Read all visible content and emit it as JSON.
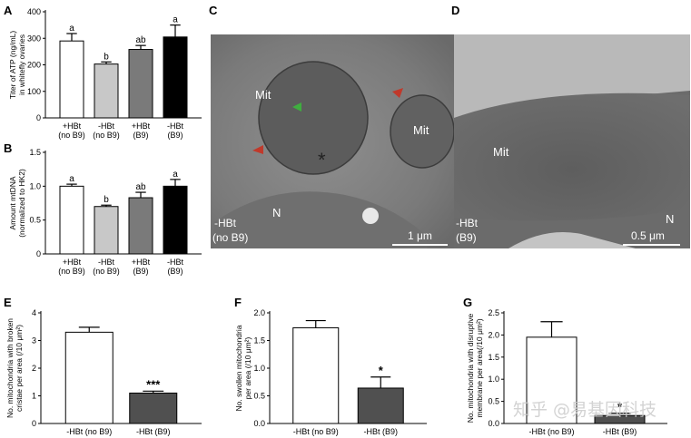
{
  "panels": {
    "A": "A",
    "B": "B",
    "C": "C",
    "D": "D",
    "E": "E",
    "F": "F",
    "G": "G"
  },
  "em": {
    "C": {
      "labels": [
        "Mit",
        "Mit",
        "N"
      ],
      "condition_line1": "-HBt",
      "condition_line2": "(no B9)",
      "scale": "1 μm"
    },
    "D": {
      "labels": [
        "Mit",
        "N"
      ],
      "condition_line1": "-HBt",
      "condition_line2": "(B9)",
      "scale": "0.5 μm"
    }
  },
  "watermark": "知乎 @易基因科技",
  "colors": {
    "white": "#ffffff",
    "light_gray": "#c8c8c8",
    "mid_gray": "#7a7a7a",
    "dark_gray": "#505050",
    "black": "#000000"
  },
  "chart_data": [
    {
      "id": "A",
      "type": "bar",
      "categories": [
        "+HBt\n(no B9)",
        "-HBt\n(no B9)",
        "+HBt\n(B9)",
        "-HBt\n(B9)"
      ],
      "values": [
        290,
        203,
        258,
        305
      ],
      "errors": [
        28,
        8,
        15,
        45
      ],
      "sig": [
        "a",
        "b",
        "ab",
        "a"
      ],
      "ylabel": [
        "Titer of ATP (ng/mL)",
        "in whitefly ovaries"
      ],
      "ylim": [
        0,
        400
      ],
      "yticks": [
        0,
        100,
        200,
        300,
        400
      ],
      "bar_colors": [
        "#ffffff",
        "#c8c8c8",
        "#7a7a7a",
        "#000000"
      ]
    },
    {
      "id": "B",
      "type": "bar",
      "categories": [
        "+HBt\n(no B9)",
        "-HBt\n(no B9)",
        "+HBt\n(B9)",
        "-HBt\n(B9)"
      ],
      "values": [
        1.0,
        0.7,
        0.83,
        1.0
      ],
      "errors": [
        0.03,
        0.02,
        0.08,
        0.1
      ],
      "sig": [
        "a",
        "b",
        "ab",
        "a"
      ],
      "ylabel": [
        "Amount mtDNA",
        "(normalized to HK2)"
      ],
      "ylim": [
        0,
        1.5
      ],
      "yticks": [
        "0",
        "0.5",
        "1.0",
        "1.5"
      ],
      "bar_colors": [
        "#ffffff",
        "#c8c8c8",
        "#7a7a7a",
        "#000000"
      ]
    },
    {
      "id": "E",
      "type": "bar",
      "categories": [
        "-HBt (no B9)",
        "-HBt (B9)"
      ],
      "values": [
        3.3,
        1.1
      ],
      "errors": [
        0.18,
        0.07
      ],
      "sig": [
        "",
        "***"
      ],
      "ylabel": [
        "No. mitochondria with broken",
        "cristae per area (/10 μm²)"
      ],
      "ylim": [
        0,
        4
      ],
      "yticks": [
        "0",
        "1",
        "2",
        "3",
        "4"
      ],
      "bar_colors": [
        "#ffffff",
        "#505050"
      ]
    },
    {
      "id": "F",
      "type": "bar",
      "categories": [
        "-HBt (no B9)",
        "-HBt (B9)"
      ],
      "values": [
        1.73,
        0.64
      ],
      "errors": [
        0.13,
        0.2
      ],
      "sig": [
        "",
        "*"
      ],
      "ylabel": [
        "No. swollen mitochondria",
        "per area (/10 μm²)"
      ],
      "ylim": [
        0,
        2.0
      ],
      "yticks": [
        "0.0",
        "0.5",
        "1.0",
        "1.5",
        "2.0"
      ],
      "bar_colors": [
        "#ffffff",
        "#505050"
      ]
    },
    {
      "id": "G",
      "type": "bar",
      "categories": [
        "-HBt (no B9)",
        "-HBt (B9)"
      ],
      "values": [
        1.95,
        0.18
      ],
      "errors": [
        0.35,
        0.05
      ],
      "sig": [
        "",
        "*"
      ],
      "ylabel": [
        "No. mitochondria with disruptive",
        "membrane per area(/10 μm²)"
      ],
      "ylim": [
        0,
        2.5
      ],
      "yticks": [
        "0.0",
        "0.5",
        "1.0",
        "1.5",
        "2.0",
        "2.5"
      ],
      "bar_colors": [
        "#ffffff",
        "#505050"
      ]
    }
  ]
}
